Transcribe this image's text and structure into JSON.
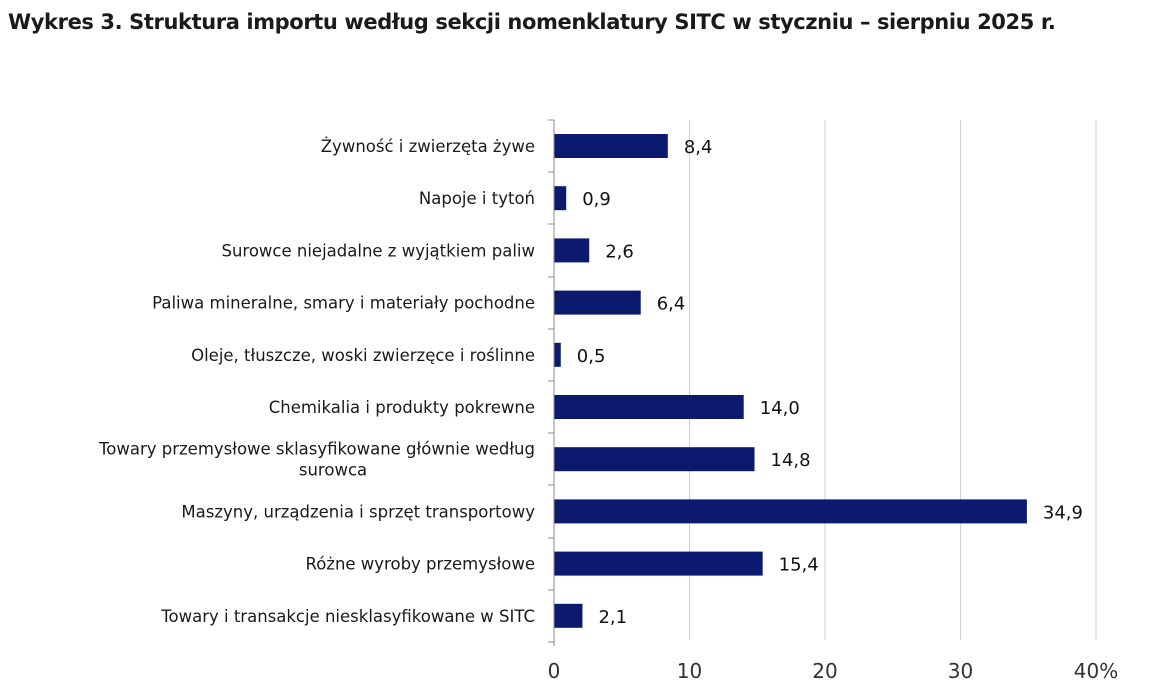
{
  "title": "Wykres 3. Struktura importu według sekcji nomenklatury SITC w styczniu – sierpniu 2025 r.",
  "chart_data": {
    "type": "bar",
    "orientation": "horizontal",
    "title": "Wykres 3. Struktura importu według sekcji nomenklatury SITC w styczniu – sierpniu 2025 r.",
    "categories": [
      [
        "Żywność i zwierzęta żywe"
      ],
      [
        "Napoje i tytoń"
      ],
      [
        "Surowce niejadalne z wyjątkiem paliw"
      ],
      [
        "Paliwa mineralne, smary i materiały  pochodne"
      ],
      [
        "Oleje, tłuszcze, woski zwierzęce i roślinne"
      ],
      [
        "Chemikalia i produkty pokrewne"
      ],
      [
        "Towary przemysłowe sklasyfikowane głównie według",
        "surowca"
      ],
      [
        "Maszyny, urządzenia i sprzęt transportowy"
      ],
      [
        "Różne wyroby przemysłowe"
      ],
      [
        "Towary i transakcje niesklasyfikowane w SITC"
      ]
    ],
    "values": [
      8.4,
      0.9,
      2.6,
      6.4,
      0.5,
      14.0,
      14.8,
      34.9,
      15.4,
      2.1
    ],
    "value_labels": [
      "8,4",
      "0,9",
      "2,6",
      "6,4",
      "0,5",
      "14,0",
      "14,8",
      "34,9",
      "15,4",
      "2,1"
    ],
    "xlim": [
      0,
      40
    ],
    "x_ticks": [
      0,
      10,
      20,
      30,
      40
    ],
    "x_tick_labels": [
      "0",
      "10",
      "20",
      "30",
      "40%"
    ],
    "grid": true,
    "legend": "none",
    "colors": {
      "bar": "#0b1a6e",
      "grid": "#cfcfcf",
      "axis": "#8c8c8c"
    }
  }
}
